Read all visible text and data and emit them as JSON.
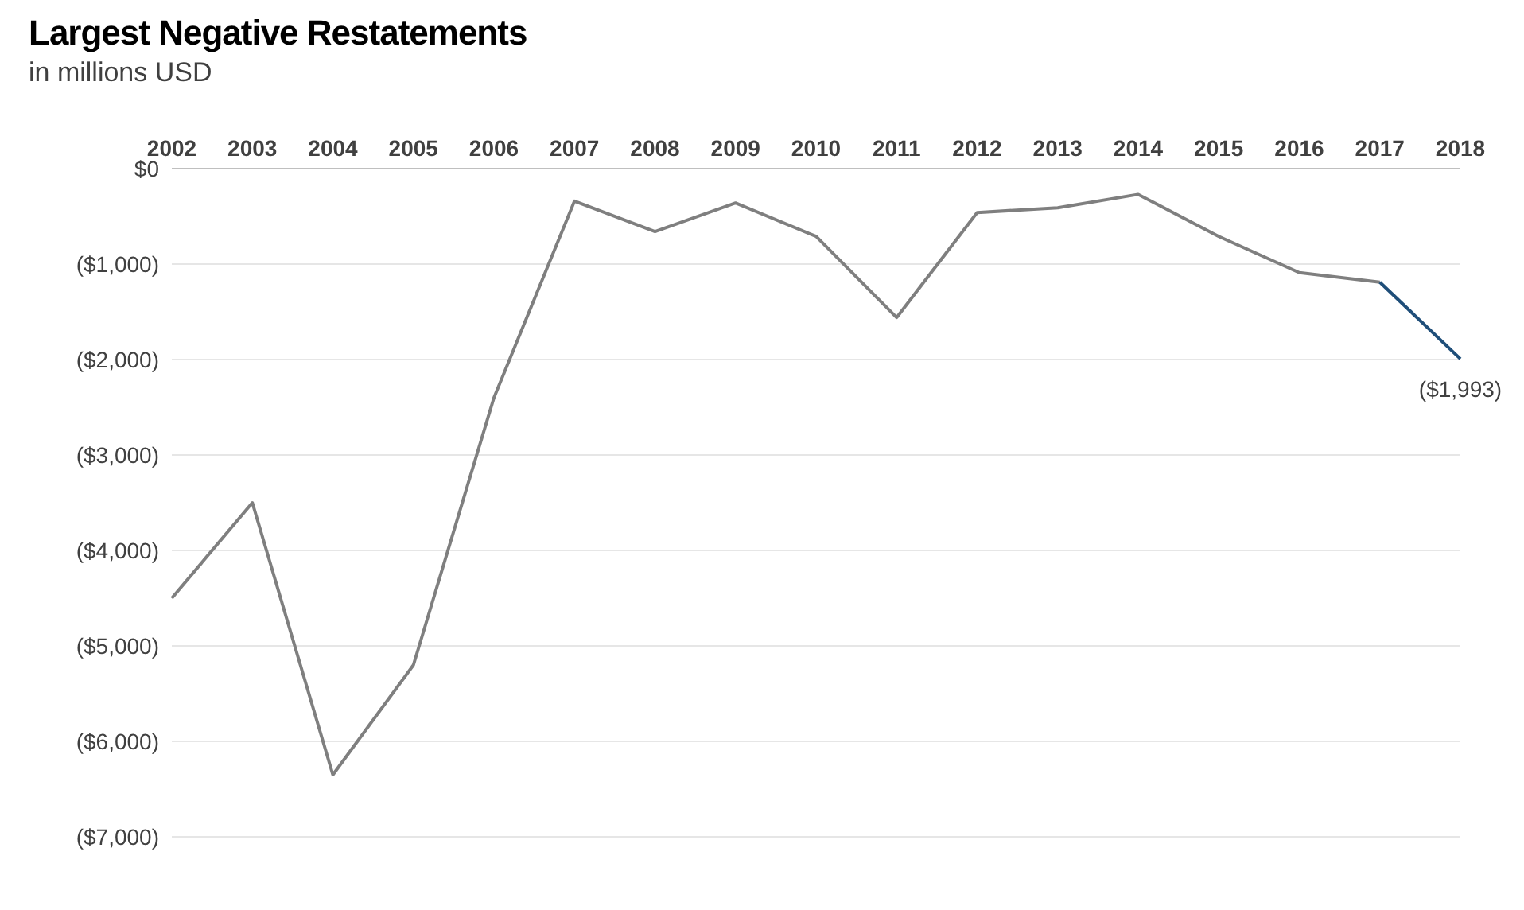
{
  "chart_data": {
    "type": "line",
    "title": "Largest Negative Restatements",
    "subtitle": "in millions USD",
    "categories": [
      "2002",
      "2003",
      "2004",
      "2005",
      "2006",
      "2007",
      "2008",
      "2009",
      "2010",
      "2011",
      "2012",
      "2013",
      "2014",
      "2015",
      "2016",
      "2017",
      "2018"
    ],
    "series": [
      {
        "color": "#7f7f7f",
        "values": [
          -4500,
          -3500,
          -6350,
          -5200,
          -2400,
          -340,
          -660,
          -360,
          -710,
          -1560,
          -460,
          -410,
          -270,
          -710,
          -1090,
          -1190,
          null
        ]
      },
      {
        "color": "#1f4e79",
        "values": [
          null,
          null,
          null,
          null,
          null,
          null,
          null,
          null,
          null,
          null,
          null,
          null,
          null,
          null,
          null,
          -1190,
          -1993
        ],
        "value_labels": [
          null,
          null,
          null,
          null,
          null,
          null,
          null,
          null,
          null,
          null,
          null,
          null,
          null,
          null,
          null,
          null,
          "($1,993)"
        ]
      }
    ],
    "ylim": [
      -7000,
      0
    ],
    "yticks": [
      {
        "value": -7000,
        "label": "($7,000)"
      },
      {
        "value": -6000,
        "label": "($6,000)"
      },
      {
        "value": -5000,
        "label": "($5,000)"
      },
      {
        "value": -4000,
        "label": "($4,000)"
      },
      {
        "value": -3000,
        "label": "($3,000)"
      },
      {
        "value": -2000,
        "label": "($2,000)"
      },
      {
        "value": -1000,
        "label": "($1,000)"
      },
      {
        "value": 0,
        "label": "$0"
      }
    ],
    "grid": "y",
    "legend": false,
    "marker": "none",
    "line_style": "solid"
  }
}
